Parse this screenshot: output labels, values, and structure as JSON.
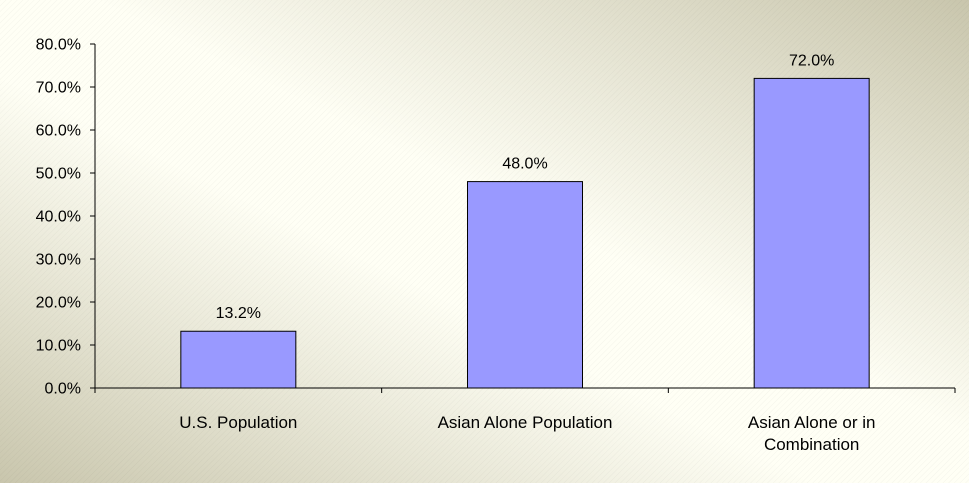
{
  "chart_data": {
    "type": "bar",
    "categories": [
      [
        "U.S. Population"
      ],
      [
        "Asian Alone Population"
      ],
      [
        "Asian Alone or in",
        "Combination"
      ]
    ],
    "values": [
      13.2,
      48.0,
      72.0
    ],
    "data_labels": [
      "13.2%",
      "48.0%",
      "72.0%"
    ],
    "y_ticks": [
      "0.0%",
      "10.0%",
      "20.0%",
      "30.0%",
      "40.0%",
      "50.0%",
      "60.0%",
      "70.0%",
      "80.0%"
    ],
    "ylim": [
      0,
      80
    ],
    "title": "",
    "xlabel": "",
    "ylabel": "",
    "grid": false,
    "legend": "none",
    "colors": {
      "bar_fill": "#9999ff",
      "bar_stroke": "#000000",
      "background_light": "#fffff5",
      "background_dark": "#c9c6ad",
      "axis": "#000000"
    }
  }
}
